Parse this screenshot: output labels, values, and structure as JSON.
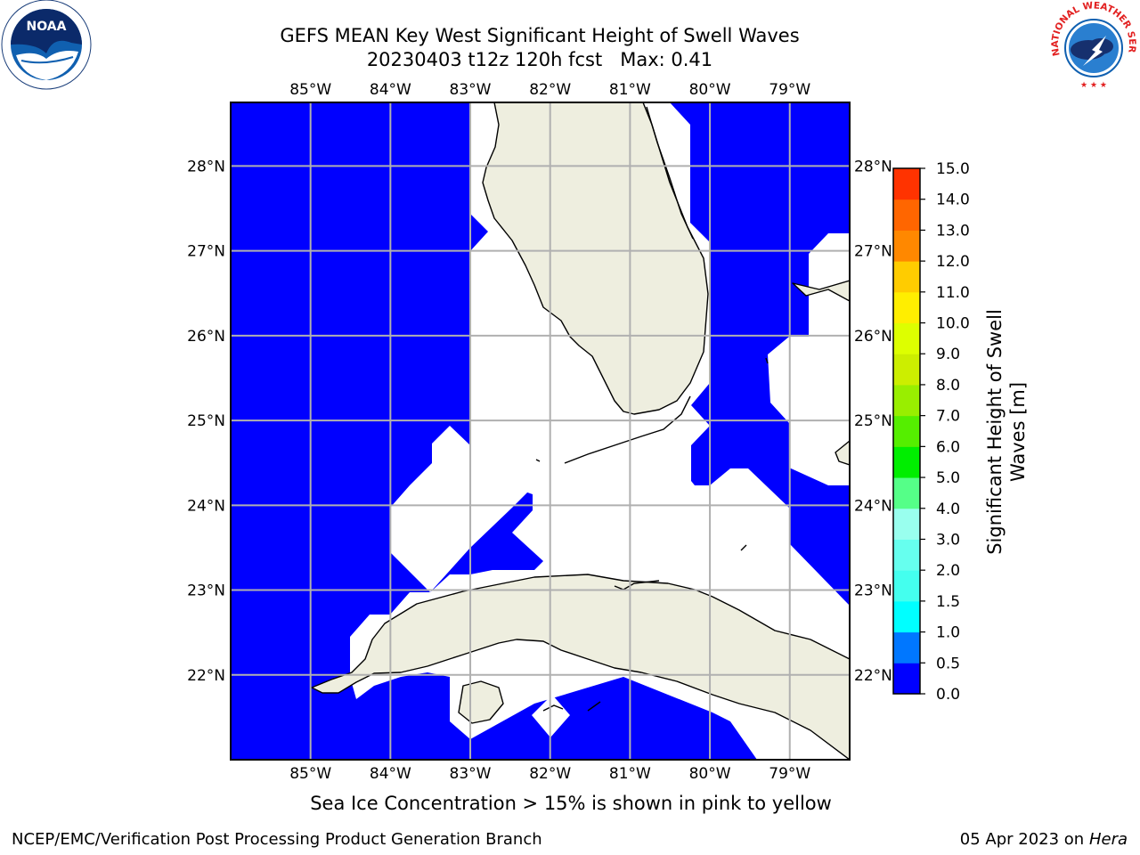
{
  "header": {
    "title_line1": "GEFS MEAN Key West Significant Height of Swell Waves",
    "title_line2": "20230403 t12z 120h fcst   Max: 0.41"
  },
  "chart_data": {
    "type": "heatmap",
    "projection": "PlateCarree",
    "variable": "Significant Height of Swell Waves",
    "units": "m",
    "lon_range": [
      -86.0,
      -78.25
    ],
    "lat_range": [
      21.0,
      28.75
    ],
    "lon_ticks": [
      "85°W",
      "84°W",
      "83°W",
      "82°W",
      "81°W",
      "80°W",
      "79°W"
    ],
    "lon_values": [
      -85,
      -84,
      -83,
      -82,
      -81,
      -80,
      -79
    ],
    "lat_ticks": [
      "28°N",
      "27°N",
      "26°N",
      "25°N",
      "24°N",
      "23°N",
      "22°N"
    ],
    "lat_values": [
      28,
      27,
      26,
      25,
      24,
      23,
      22
    ],
    "gridlines": true,
    "max_value": 0.41,
    "field_fill": "#0000ff",
    "land_fill": "#eeeedf",
    "colorbar": {
      "label_line1": "Significant Height of Swell",
      "label_line2": "Waves [m]",
      "levels": [
        "0.0",
        "0.5",
        "1.0",
        "1.5",
        "2.0",
        "3.0",
        "4.0",
        "5.0",
        "6.0",
        "7.0",
        "8.0",
        "9.0",
        "10.0",
        "11.0",
        "12.0",
        "13.0",
        "14.0",
        "15.0"
      ],
      "colors": [
        "#0000ff",
        "#0077ff",
        "#00ffff",
        "#44ffee",
        "#66ffee",
        "#99ffee",
        "#55ff88",
        "#00ee00",
        "#55ee00",
        "#99ee00",
        "#ccee00",
        "#ddff00",
        "#ffee00",
        "#ffcc00",
        "#ff8800",
        "#ff6600",
        "#ff3300",
        "#ff0000"
      ]
    }
  },
  "footer": {
    "note": "Sea Ice Concentration > 15% is shown in pink to yellow",
    "left": "NCEP/EMC/Verification Post Processing Product Generation Branch",
    "date": "05 Apr 2023 on",
    "machine": "Hera"
  },
  "logos": {
    "noaa_text": "NOAA",
    "nws_text": "NATIONAL WEATHER SERVICE"
  }
}
